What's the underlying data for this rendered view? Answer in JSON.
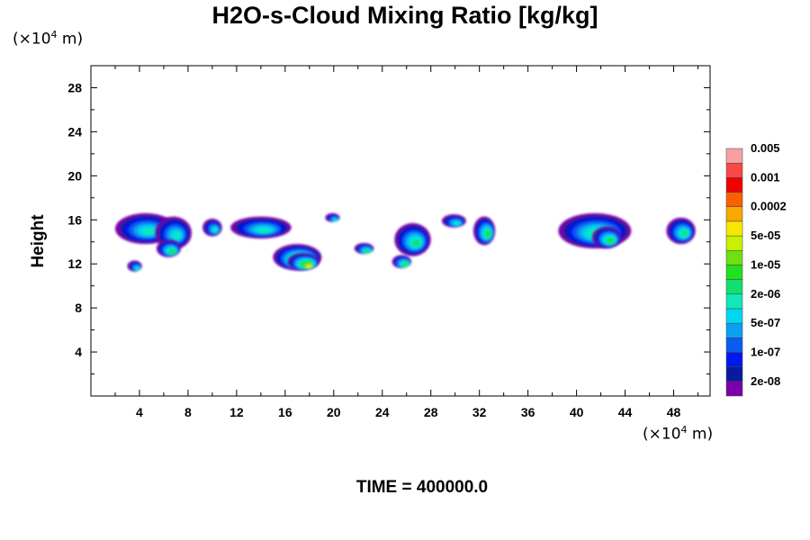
{
  "chart_data": {
    "type": "heatmap",
    "title": "H2O-s-Cloud Mixing Ratio [kg/kg]",
    "ylabel": "Height",
    "y_unit": {
      "prefix": "(×10",
      "exp": "4",
      "suffix": " m)"
    },
    "x_unit": {
      "prefix": "(×10",
      "exp": "4",
      "suffix": " m)"
    },
    "xlim": [
      0,
      51
    ],
    "ylim": [
      0,
      30
    ],
    "x_ticks": [
      4,
      8,
      12,
      16,
      20,
      24,
      28,
      32,
      36,
      40,
      44,
      48
    ],
    "y_ticks": [
      4,
      8,
      12,
      16,
      20,
      24,
      28
    ],
    "colorbar": {
      "colors": [
        "#7a00aa",
        "#0a1aa0",
        "#0018f0",
        "#0a5cf0",
        "#0aa0f0",
        "#00d8f0",
        "#10e8b8",
        "#10e070",
        "#20e020",
        "#70e010",
        "#c8f000",
        "#f8e800",
        "#f8a800",
        "#f86000",
        "#f00000",
        "#f84848",
        "#f8a0a0"
      ],
      "labels": [
        "2e-08",
        "1e-07",
        "5e-07",
        "2e-06",
        "1e-05",
        "5e-05",
        "0.0002",
        "0.001",
        "0.005"
      ]
    },
    "cloud_cells": [
      {
        "x": 4.5,
        "y": 15.2,
        "width": 5.0,
        "height": 2.8,
        "level": 6
      },
      {
        "x": 6.8,
        "y": 14.8,
        "width": 3.0,
        "height": 3.0,
        "level": 6
      },
      {
        "x": 6.4,
        "y": 13.4,
        "width": 2.0,
        "height": 1.6,
        "level": 8
      },
      {
        "x": 3.6,
        "y": 11.8,
        "width": 1.2,
        "height": 1.0,
        "level": 6
      },
      {
        "x": 10.0,
        "y": 15.3,
        "width": 1.6,
        "height": 1.6,
        "level": 6
      },
      {
        "x": 14.0,
        "y": 15.3,
        "width": 5.0,
        "height": 2.0,
        "level": 6
      },
      {
        "x": 17.0,
        "y": 12.6,
        "width": 4.0,
        "height": 2.4,
        "level": 10
      },
      {
        "x": 17.5,
        "y": 12.2,
        "width": 2.6,
        "height": 1.6,
        "level": 11
      },
      {
        "x": 19.9,
        "y": 16.2,
        "width": 1.2,
        "height": 0.8,
        "level": 6
      },
      {
        "x": 22.5,
        "y": 13.4,
        "width": 1.6,
        "height": 1.0,
        "level": 8
      },
      {
        "x": 26.5,
        "y": 14.2,
        "width": 3.0,
        "height": 3.0,
        "level": 7
      },
      {
        "x": 25.6,
        "y": 12.2,
        "width": 1.6,
        "height": 1.2,
        "level": 9
      },
      {
        "x": 29.9,
        "y": 15.9,
        "width": 2.0,
        "height": 1.2,
        "level": 6
      },
      {
        "x": 32.4,
        "y": 15.0,
        "width": 1.8,
        "height": 2.6,
        "level": 8
      },
      {
        "x": 41.5,
        "y": 15.0,
        "width": 6.0,
        "height": 3.2,
        "level": 7
      },
      {
        "x": 42.5,
        "y": 14.4,
        "width": 2.4,
        "height": 2.0,
        "level": 8
      },
      {
        "x": 48.6,
        "y": 15.0,
        "width": 2.4,
        "height": 2.4,
        "level": 7
      }
    ]
  },
  "time_label": "TIME = 400000.0"
}
